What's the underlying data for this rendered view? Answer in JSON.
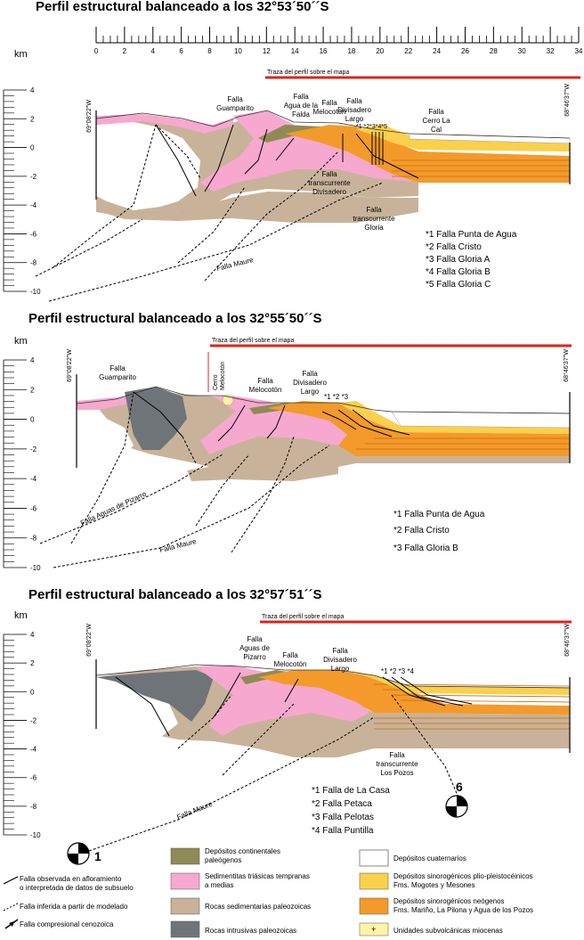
{
  "scale": {
    "unit": "km",
    "ticks": [
      "0",
      "2",
      "4",
      "6",
      "8",
      "10",
      "12",
      "14",
      "16",
      "18",
      "20",
      "22",
      "24",
      "26",
      "28",
      "30",
      "32",
      "34"
    ]
  },
  "depth_ticks": [
    "4",
    "2",
    "0",
    "-2",
    "-4",
    "-6",
    "-8",
    "-10"
  ],
  "trace_label": "Traza del perfil sobre el mapa",
  "coord_west": "69°08'22''W",
  "coord_east": "68°46'37''W",
  "colors": {
    "paleogene": "#8f8b55",
    "triassic": "#f7a8cf",
    "paleozoic_sed": "#c8b39a",
    "intrusive": "#6f7478",
    "quaternary": "#ffffff",
    "pliopleisto": "#fbd04a",
    "neogene": "#f39a2a",
    "subvolcanic": "#fff3a6",
    "trace_red": "#d9261c"
  },
  "profiles": [
    {
      "title": "Perfil estructural balanceado a los 32°53´50´´S",
      "labels": {
        "guamparito": "Falla Guamparito",
        "agua_falda": "Falla Agua de la Falda",
        "melocoton": "Falla Melocotón",
        "divisadero": "Falla Divisadero Largo",
        "cerro_la_cal": "Falla Cerro La Cal",
        "transc_div": "Falla transcurrente Divisadero",
        "transc_gloria": "Falla transcurrente Gloria",
        "maure": "Falla Maure",
        "stars": "*1 *2*3*4*5"
      },
      "notes": [
        "*1 Falla Punta de Agua",
        "*2 Falla Cristo",
        "*3 Falla Gloria A",
        "*4 Falla Gloria B",
        "*5 Falla Gloria C"
      ]
    },
    {
      "title": "Perfil estructural balanceado a los 32°55´50´´S",
      "labels": {
        "guamparito": "Falla Guamparito",
        "cerro_melocoton": "Cerro Melocotón",
        "melocoton": "Falla Melocotón",
        "divisadero": "Falla Divisadero Largo",
        "aguas_pizarro": "Falla Aguas de Pizarro",
        "maure": "Falla Maure",
        "stars": "*1 *2 *3"
      },
      "notes": [
        "*1 Falla Punta de Agua",
        "*2  Falla Cristo",
        "*3 Falla Gloria B"
      ]
    },
    {
      "title": "Perfil estructural balanceado a los 32°57´51´´S",
      "labels": {
        "aguas_pizarro": "Falla Aguas de Pizarro",
        "melocoton": "Falla Melocotón",
        "divisadero": "Falla Divisadero Largo",
        "transc_pozos": "Falla transcurrente Los Pozos",
        "maure": "Falla Maure",
        "stars": "*1 *2 *3 *4",
        "mech6": "6",
        "mech1": "1"
      },
      "notes": [
        "*1 Falla de La Casa",
        "*2 Falla Petaca",
        "*3 Falla Pelotas",
        "*4 Falla Puntilla"
      ]
    }
  ],
  "legend": {
    "fault_observed": "Falla observada en afloramiento o interpretada de datos de subsuelo",
    "fault_inferred": "Falla inferida a partir de modelado",
    "fault_cenozoic": "Falla compresional cenozoica",
    "paleogene": "Depósitos continentales paleógenos",
    "triassic": "Sedimentitas triásicas tempranas a medias",
    "paleozoic_sed": "Rocas sedimentarias paleozoicas",
    "intrusive": "Rocas intrusivas paleozoicas",
    "quaternary": "Depósitos cuaternarios",
    "pliopleisto": "Depósitos sinorogénicos plio-pleistocéinicos Fms. Mogotes y Mesones",
    "neogene": "Depósitos sinorogénicos neógenos Fms. Mariño, La Pilona y Agua de los Pozos",
    "subvolcanic": "Unidades subvolcánicas miocenas"
  }
}
